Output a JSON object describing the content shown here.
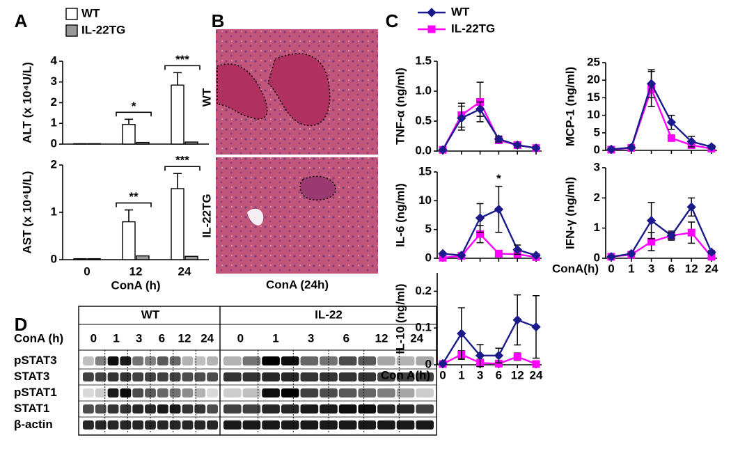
{
  "chart_data": [
    {
      "type": "bar",
      "panel": "A",
      "legend": [
        {
          "name": "WT",
          "color": "#ffffff"
        },
        {
          "name": "IL-22TG",
          "color": "#999999"
        }
      ],
      "categories": [
        "0",
        "12",
        "24"
      ],
      "subplots": [
        {
          "ylabel": "ALT (x 10⁴U/L)",
          "ylim": [
            0,
            4
          ],
          "yticks": [
            0,
            1,
            2,
            3,
            4
          ],
          "series": [
            {
              "values": [
                0.02,
                0.95,
                2.85
              ],
              "errors": [
                null,
                0.25,
                0.6
              ]
            },
            {
              "values": [
                0.02,
                0.08,
                0.1
              ],
              "errors": [
                null,
                null,
                null
              ]
            }
          ],
          "significance": [
            null,
            "*",
            "***"
          ]
        },
        {
          "ylabel": "AST (x 10⁴U/L)",
          "ylim": [
            0,
            2
          ],
          "yticks": [
            0,
            1,
            2
          ],
          "xlabel": "ConA (h)",
          "series": [
            {
              "values": [
                0.02,
                0.8,
                1.5
              ],
              "errors": [
                null,
                0.25,
                0.32
              ]
            },
            {
              "values": [
                0.02,
                0.08,
                0.07
              ],
              "errors": [
                null,
                null,
                null
              ]
            }
          ],
          "significance": [
            null,
            "**",
            "***"
          ]
        }
      ]
    },
    {
      "type": "line",
      "panel": "C",
      "legend": [
        {
          "name": "WT",
          "color": "#1a1a8c",
          "marker": "diamond"
        },
        {
          "name": "IL-22TG",
          "color": "#ff00ff",
          "marker": "square"
        }
      ],
      "categories": [
        "0",
        "1",
        "3",
        "6",
        "12",
        "24"
      ],
      "subplots": [
        {
          "ylabel": "TNF-α (ng/ml)",
          "ylim": [
            0,
            1.5
          ],
          "yticks": [
            {
              "value": 0,
              "label": "0.0"
            },
            0.5,
            {
              "value": 1,
              "label": "1.0"
            },
            1.5
          ],
          "series": [
            {
              "values": [
                0.02,
                0.55,
                0.7,
                0.2,
                0.1,
                0.05
              ],
              "errors": [
                null,
                0.2,
                0.12,
                0.05,
                0.03,
                0.02
              ]
            },
            {
              "values": [
                0.02,
                0.6,
                0.82,
                0.18,
                0.1,
                0.05
              ],
              "errors": [
                null,
                0.2,
                0.33,
                0.05,
                0.03,
                0.02
              ]
            }
          ]
        },
        {
          "ylabel": "MCP-1 (ng/ml)",
          "ylim": [
            0,
            25
          ],
          "yticks": [
            0,
            5,
            10,
            15,
            20,
            25
          ],
          "series": [
            {
              "values": [
                0.3,
                0.8,
                19,
                8,
                2.5,
                1
              ],
              "errors": [
                null,
                null,
                4,
                2,
                1.5,
                0.5
              ]
            },
            {
              "values": [
                0.2,
                0.7,
                17.5,
                3.5,
                1.5,
                0.5
              ],
              "errors": [
                null,
                null,
                5,
                0.8,
                0.5,
                0.3
              ]
            }
          ]
        },
        {
          "ylabel": "IL-6 (ng/ml)",
          "ylim": [
            0,
            15
          ],
          "yticks": [
            0,
            5,
            10,
            15
          ],
          "series": [
            {
              "values": [
                0.8,
                0.5,
                7,
                8.5,
                1.5,
                0.5
              ],
              "errors": [
                null,
                null,
                2.5,
                4,
                0.8,
                0.2
              ]
            },
            {
              "values": [
                0.1,
                0.4,
                4.2,
                0.8,
                0.7,
                0.2
              ],
              "errors": [
                null,
                null,
                1.5,
                0.3,
                0.3,
                0.1
              ]
            }
          ],
          "significance": [
            null,
            null,
            null,
            "*",
            null,
            null
          ]
        },
        {
          "ylabel": "IFN-γ (ng/ml)",
          "ylim": [
            0,
            3
          ],
          "yticks": [
            0,
            1,
            2,
            3
          ],
          "xlabel": "ConA(h)",
          "series": [
            {
              "values": [
                0.05,
                0.15,
                1.25,
                0.75,
                1.7,
                0.2
              ],
              "errors": [
                null,
                null,
                0.6,
                0.1,
                0.3,
                0.05
              ]
            },
            {
              "values": [
                0.05,
                0.12,
                0.55,
                0.75,
                0.85,
                0.05
              ],
              "errors": [
                null,
                null,
                0.3,
                0.15,
                0.35,
                0.05
              ]
            }
          ]
        },
        {
          "ylabel": "IL-10 (ng/ml)",
          "ylim": [
            0,
            0.25
          ],
          "yticks": [
            0,
            0.1,
            0.2
          ],
          "xlabel": "Con A(h)",
          "series": [
            {
              "values": [
                0.003,
                0.085,
                0.025,
                0.025,
                0.122,
                0.103
              ],
              "errors": [
                null,
                0.07,
                0.03,
                0.02,
                0.068,
                0.085
              ]
            },
            {
              "values": [
                0.002,
                0.028,
                0.005,
                0.003,
                0.022,
                0.002
              ],
              "errors": [
                null,
                0.01,
                0.01,
                null,
                0.01,
                0.005
              ]
            }
          ]
        }
      ]
    }
  ],
  "histology": {
    "panel": "B",
    "labels": [
      "WT",
      "IL-22TG"
    ],
    "xlabel": "ConA (24h)"
  },
  "western_blot": {
    "panel": "D",
    "groups": [
      "WT",
      "IL-22"
    ],
    "time_label": "ConA (h)",
    "times": [
      "0",
      "1",
      "3",
      "6",
      "12",
      "24"
    ],
    "rows": [
      "pSTAT3",
      "STAT3",
      "pSTAT1",
      "STAT1",
      "β-actin"
    ]
  }
}
